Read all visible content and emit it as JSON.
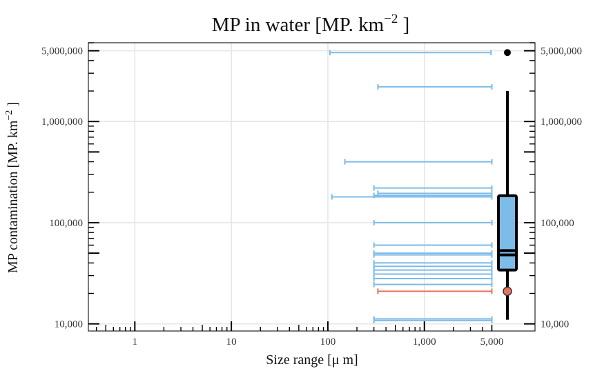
{
  "chart_data": {
    "type": "range",
    "title": "MP in water [MP. km",
    "title_sup": "−2",
    "title_end": " ]",
    "xlabel": "Size range [μ m]",
    "ylabel": "MP contamination [MP. km",
    "ylabel_sup": "−2",
    "ylabel_end": " ]",
    "x_scale": "log",
    "y_scale": "log",
    "xlim": [
      0.33,
      14000
    ],
    "ylim": [
      8500,
      6000000
    ],
    "x_ticks": [
      {
        "value": 1,
        "label": "1"
      },
      {
        "value": 10,
        "label": "10"
      },
      {
        "value": 100,
        "label": "100"
      },
      {
        "value": 1000,
        "label": "1,000"
      },
      {
        "value": 5000,
        "label": "5,000"
      }
    ],
    "y_ticks": [
      {
        "value": 10000,
        "label": "10,000"
      },
      {
        "value": 100000,
        "label": "100,000"
      },
      {
        "value": 1000000,
        "label": "1,000,000"
      },
      {
        "value": 5000000,
        "label": "5,000,000"
      }
    ],
    "grid": true,
    "colors": {
      "range": "#7dbbe8",
      "highlight": "#e8735c",
      "box_fill": "#7dbbe8",
      "box_line": "#000000"
    },
    "ranges": [
      {
        "y": 4800000,
        "x_min": 105,
        "x_max": 4900,
        "highlight": false
      },
      {
        "y": 2200000,
        "x_min": 330,
        "x_max": 5000,
        "highlight": false
      },
      {
        "y": 400000,
        "x_min": 150,
        "x_max": 5000,
        "highlight": false
      },
      {
        "y": 220000,
        "x_min": 300,
        "x_max": 5000,
        "highlight": false
      },
      {
        "y": 195000,
        "x_min": 330,
        "x_max": 5000,
        "highlight": false
      },
      {
        "y": 186000,
        "x_min": 300,
        "x_max": 5000,
        "highlight": false
      },
      {
        "y": 180000,
        "x_min": 110,
        "x_max": 5000,
        "highlight": false
      },
      {
        "y": 100000,
        "x_min": 300,
        "x_max": 5000,
        "highlight": false
      },
      {
        "y": 60000,
        "x_min": 300,
        "x_max": 5000,
        "highlight": false
      },
      {
        "y": 50000,
        "x_min": 300,
        "x_max": 5000,
        "highlight": false
      },
      {
        "y": 48000,
        "x_min": 300,
        "x_max": 5000,
        "highlight": false
      },
      {
        "y": 40000,
        "x_min": 300,
        "x_max": 5000,
        "highlight": false
      },
      {
        "y": 37000,
        "x_min": 300,
        "x_max": 5000,
        "highlight": false
      },
      {
        "y": 34000,
        "x_min": 300,
        "x_max": 5000,
        "highlight": false
      },
      {
        "y": 31000,
        "x_min": 300,
        "x_max": 5000,
        "highlight": false
      },
      {
        "y": 28000,
        "x_min": 300,
        "x_max": 5000,
        "highlight": false
      },
      {
        "y": 24500,
        "x_min": 300,
        "x_max": 5000,
        "highlight": false
      },
      {
        "y": 21000,
        "x_min": 330,
        "x_max": 5000,
        "highlight": true
      },
      {
        "y": 11200,
        "x_min": 300,
        "x_max": 5000,
        "highlight": false
      },
      {
        "y": 10800,
        "x_min": 300,
        "x_max": 5000,
        "highlight": false
      }
    ],
    "boxplot": {
      "whisker_low": 11000,
      "q1": 34000,
      "median": 48000,
      "mean": 53000,
      "q3": 185000,
      "whisker_high": 2000000,
      "outliers": [
        4800000
      ],
      "highlight_point": 21000
    }
  }
}
